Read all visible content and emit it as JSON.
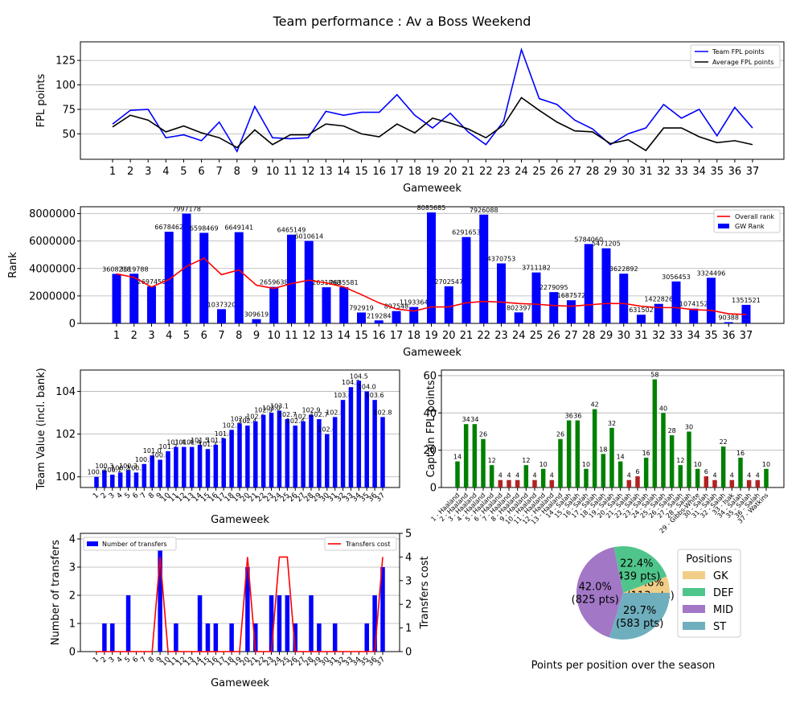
{
  "page": {
    "title": "Team performance : Av a Boss Weekend"
  },
  "colors": {
    "team": "#0000ff",
    "average": "#000000",
    "overall_rank": "#ff0000",
    "captain_bar": "#008000",
    "captain_bar_low": "#b22222",
    "cost_line": "#ff0000",
    "gk": "#f1ce87",
    "def": "#50c58b",
    "mid": "#a277c6",
    "st": "#6fafbd"
  },
  "chart_data": [
    {
      "id": "fpl_points",
      "type": "line",
      "title": "",
      "xlabel": "Gameweek",
      "ylabel": "FPL points",
      "x": [
        1,
        2,
        3,
        4,
        5,
        6,
        7,
        8,
        9,
        10,
        11,
        12,
        13,
        14,
        15,
        16,
        17,
        18,
        19,
        20,
        21,
        22,
        23,
        24,
        25,
        26,
        27,
        28,
        29,
        30,
        31,
        32,
        33,
        34,
        35,
        36,
        37
      ],
      "ylim": [
        24,
        144
      ],
      "yticks": [
        50,
        75,
        100,
        125
      ],
      "grid": "y",
      "legend": "top-right",
      "series": [
        {
          "name": "Team FPL points",
          "color": "#0000ff",
          "values": [
            60,
            74,
            75,
            46,
            49,
            43,
            62,
            32,
            78,
            46,
            45,
            46,
            73,
            69,
            72,
            72,
            90,
            69,
            56,
            71,
            52,
            39,
            63,
            136,
            86,
            80,
            64,
            55,
            39,
            50,
            56,
            80,
            66,
            75,
            48,
            77,
            56
          ]
        },
        {
          "name": "Average FPL points",
          "color": "#000000",
          "values": [
            57,
            69,
            64,
            52,
            58,
            51,
            46,
            36,
            54,
            39,
            49,
            49,
            60,
            58,
            50,
            47,
            60,
            51,
            66,
            61,
            55,
            46,
            59,
            87,
            74,
            62,
            53,
            52,
            40,
            44,
            33,
            56,
            56,
            47,
            41,
            43,
            39
          ]
        }
      ]
    },
    {
      "id": "rank",
      "type": "bar",
      "title": "",
      "xlabel": "Gameweek",
      "ylabel": "Rank",
      "categories": [
        "1",
        "2",
        "3",
        "4",
        "5",
        "6",
        "7",
        "8",
        "9",
        "10",
        "11",
        "12",
        "13",
        "14",
        "15",
        "16",
        "17",
        "18",
        "19",
        "20",
        "21",
        "22",
        "23",
        "24",
        "25",
        "26",
        "27",
        "28",
        "29",
        "30",
        "31",
        "32",
        "33",
        "34",
        "35",
        "36",
        "37"
      ],
      "ylim": [
        0,
        8500000
      ],
      "yticks": [
        0,
        2000000,
        4000000,
        6000000,
        8000000
      ],
      "grid": "y",
      "legend": "top-right",
      "series": [
        {
          "name": "GW Rank",
          "color": "#0000ff",
          "values": [
            3608218,
            3619788,
            2697459,
            6678462,
            7997178,
            6598469,
            1037320,
            6649141,
            309619,
            2659638,
            6465149,
            6010614,
            2631868,
            2635581,
            792919,
            219284,
            897548,
            1193364,
            8085685,
            2702547,
            6291653,
            7926088,
            4370753,
            802397,
            3711182,
            2279095,
            1687572,
            5784060,
            5471205,
            3622892,
            631502,
            1422826,
            3056453,
            1074152,
            3324496,
            90388,
            1351521
          ]
        },
        {
          "name": "Overall rank",
          "color": "#ff0000",
          "values": [
            3608218,
            3350000,
            2650000,
            3200000,
            4150000,
            4750000,
            3550000,
            3900000,
            2780000,
            2550000,
            2900000,
            3150000,
            2950000,
            2650000,
            2100000,
            1500000,
            1050000,
            900000,
            1200000,
            1200000,
            1500000,
            1600000,
            1550000,
            1450000,
            1400000,
            1300000,
            1250000,
            1350000,
            1450000,
            1450000,
            1250000,
            1150000,
            1150000,
            1000000,
            950000,
            700000,
            650000
          ]
        }
      ],
      "labels": [
        "3608218",
        "3619788",
        "2697459",
        "6678462",
        "7997178",
        "6598469",
        "1037320",
        "6649141",
        "309619",
        "2659638",
        "6465149",
        "6010614",
        "2631868",
        "2635581",
        "792919",
        "219284",
        "897548",
        "1193364",
        "8085685",
        "2702547",
        "6291653",
        "7926088",
        "4370753",
        "802397",
        "3711182",
        "2279095",
        "1687572",
        "5784060",
        "5471205",
        "3622892",
        "631502",
        "1422826",
        "3056453",
        "1074152",
        "3324496",
        "90388",
        "1351521"
      ]
    },
    {
      "id": "team_value",
      "type": "bar",
      "title": "",
      "xlabel": "Gameweek",
      "ylabel": "Team Value (incl. bank)",
      "categories": [
        "1",
        "2",
        "3",
        "4",
        "5",
        "6",
        "7",
        "8",
        "9",
        "10",
        "11",
        "12",
        "13",
        "14",
        "15",
        "16",
        "17",
        "18",
        "19",
        "20",
        "21",
        "22",
        "23",
        "24",
        "25",
        "26",
        "27",
        "28",
        "29",
        "30",
        "31",
        "32",
        "33",
        "34",
        "35",
        "36",
        "37"
      ],
      "ylim": [
        99.5,
        105.0
      ],
      "yticks": [
        100,
        102,
        104
      ],
      "grid": "y",
      "series": [
        {
          "name": "",
          "color": "#0000ff",
          "values": [
            100.0,
            100.3,
            100.1,
            100.2,
            100.3,
            100.2,
            100.6,
            101.0,
            100.8,
            101.2,
            101.4,
            101.4,
            101.4,
            101.5,
            101.3,
            101.5,
            101.8,
            102.2,
            102.5,
            102.4,
            102.6,
            102.9,
            103.0,
            103.1,
            102.7,
            102.4,
            102.6,
            102.9,
            102.7,
            102.0,
            102.8,
            103.6,
            104.2,
            104.5,
            104.0,
            103.6,
            102.8
          ]
        }
      ],
      "labels": [
        "100.0",
        "100.3",
        "100.1",
        "100.2",
        "100.3",
        "100.2",
        "100.6",
        "101.0",
        "100.8",
        "101.2",
        "101.4",
        "101.4",
        "101.4",
        "101.5",
        "101.3",
        "101.5",
        "101.8",
        "102.2",
        "102.5",
        "102.4",
        "102.6",
        "102.9",
        "103.0",
        "103.1",
        "102.7",
        "102.4",
        "102.6",
        "102.9",
        "102.7",
        "102.0",
        "102.8",
        "103.6",
        "104.2",
        "104.5",
        "104.0",
        "103.6",
        "102.8"
      ],
      "visible_labels": [
        "100.0",
        "100.3",
        "100.1",
        "100.2",
        "100.3",
        "100.2",
        "100.6",
        "101.0",
        "100.8",
        "101.2",
        "101.4",
        "101.4",
        "101.4",
        "101.5",
        "101.3",
        "101.5",
        "101.8",
        "102.2",
        "102.5",
        "102.4",
        "102.6",
        "102.9",
        "103.0",
        "103.1",
        "102.7",
        "102.4",
        "102.6",
        "102.9",
        "102.7",
        "102.0",
        "102.8",
        "103.6",
        "104.2",
        "104.5",
        "104.0",
        "103.6",
        "102.8"
      ]
    },
    {
      "id": "captain",
      "type": "bar",
      "title": "",
      "xlabel": "",
      "ylabel": "Captain FPL points",
      "categories": [
        "1 - Haaland",
        "2 - Haaland",
        "3 - Haaland",
        "4 - Haaland",
        "5 - Haaland",
        "6 - Haaland",
        "7 - Haaland",
        "8 - Haaland",
        "9 - Haaland",
        "10 - Haaland",
        "11 - Haaland",
        "12 - Haaland",
        "13 - Haaland",
        "14 - Salah",
        "15 - Salah",
        "16 - Salah",
        "17 - Salah",
        "18 - Salah",
        "19 - Salah",
        "20 - Salah",
        "21 - Salah",
        "22 - Salah",
        "23 - Salah",
        "24 - Salah",
        "25 - Salah",
        "26 - Salah",
        "27 - Salah",
        "28 - Salah",
        "29 - Gibbs-White",
        "30 - Salah",
        "31 - Salah",
        "32 - Salah",
        "33 - Isak",
        "34 - Salah",
        "35 - Salah",
        "36 - Salah",
        "37 - Watkins"
      ],
      "ylim": [
        0,
        63
      ],
      "yticks": [
        0,
        20,
        40,
        60
      ],
      "grid": "y",
      "series": [
        {
          "name": "",
          "color": "#008000",
          "values": [
            14,
            34,
            34,
            26,
            12,
            4,
            4,
            4,
            12,
            4,
            10,
            4,
            26,
            36,
            36,
            10,
            42,
            18,
            32,
            14,
            4,
            6,
            16,
            58,
            40,
            28,
            12,
            30,
            10,
            6,
            4,
            22,
            4,
            16,
            4,
            4,
            10
          ]
        }
      ],
      "labels": [
        "14",
        "34",
        "34",
        "26",
        "12",
        "4",
        "4",
        "4",
        "12",
        "4",
        "10",
        "4",
        "26",
        "36",
        "36",
        "10",
        "42",
        "18",
        "32",
        "14",
        "4",
        "6",
        "16",
        "58",
        "40",
        "28",
        "12",
        "30",
        "10",
        "6",
        "4",
        "22",
        "4",
        "16",
        "4",
        "4",
        "10"
      ]
    },
    {
      "id": "transfers",
      "type": "bar",
      "title": "",
      "xlabel": "Gameweek",
      "ylabel": "Number of transfers",
      "ylabel_right": "Transfers cost",
      "categories": [
        "1",
        "2",
        "3",
        "4",
        "5",
        "6",
        "7",
        "8",
        "9",
        "10",
        "11",
        "12",
        "13",
        "14",
        "15",
        "16",
        "17",
        "18",
        "19",
        "20",
        "21",
        "22",
        "23",
        "24",
        "25",
        "26",
        "27",
        "28",
        "29",
        "30",
        "31",
        "32",
        "33",
        "34",
        "35",
        "36",
        "37"
      ],
      "ylim": [
        0,
        4.2
      ],
      "yticks": [
        0,
        1,
        2,
        3,
        4
      ],
      "ylim_right": [
        0,
        5
      ],
      "yticks_right": [
        0,
        1,
        2,
        3,
        4,
        5
      ],
      "grid": "y",
      "series": [
        {
          "name": "Number of transfers",
          "color": "#0000ff",
          "axis": "left",
          "values": [
            0,
            1,
            1,
            0,
            2,
            0,
            0,
            0,
            4,
            0,
            1,
            0,
            0,
            2,
            1,
            1,
            0,
            1,
            0,
            3,
            1,
            0,
            2,
            2,
            2,
            1,
            0,
            2,
            1,
            0,
            1,
            0,
            0,
            0,
            1,
            2,
            3
          ]
        },
        {
          "name": "Transfers cost",
          "color": "#ff0000",
          "axis": "right",
          "values": [
            0,
            0,
            0,
            0,
            0,
            0,
            0,
            0,
            4,
            0,
            0,
            0,
            0,
            0,
            0,
            0,
            0,
            0,
            0,
            4,
            0,
            0,
            0,
            4,
            4,
            0,
            0,
            0,
            0,
            0,
            0,
            0,
            0,
            0,
            0,
            0,
            4
          ]
        }
      ],
      "legend_left": "top-left",
      "legend_right": "top-right"
    },
    {
      "id": "positions",
      "type": "pie",
      "title": "Points per position over the season",
      "legend_title": "Positions",
      "legend": "right",
      "slices": [
        {
          "name": "GK",
          "pct": "5.8%",
          "pts": "(113 pts)",
          "value": 113,
          "color": "#f1ce87"
        },
        {
          "name": "DEF",
          "pct": "22.4%",
          "pts": "(439 pts)",
          "value": 439,
          "color": "#50c58b"
        },
        {
          "name": "MID",
          "pct": "42.0%",
          "pts": "(825 pts)",
          "value": 825,
          "color": "#a277c6"
        },
        {
          "name": "ST",
          "pct": "29.7%",
          "pts": "(583 pts)",
          "value": 583,
          "color": "#6fafbd"
        }
      ]
    }
  ]
}
